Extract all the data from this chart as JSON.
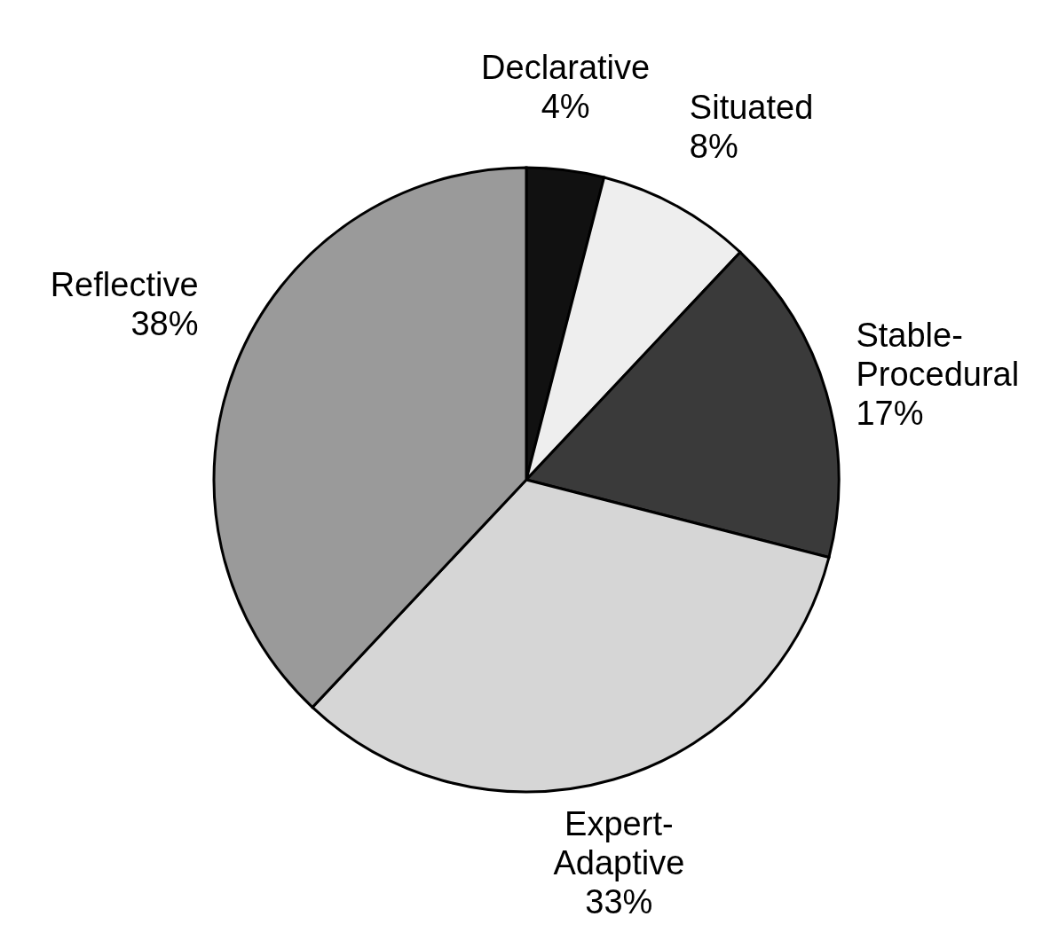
{
  "chart_data": {
    "type": "pie",
    "categories": [
      "Declarative",
      "Situated",
      "Stable-Procedural",
      "Expert-Adaptive",
      "Reflective"
    ],
    "values": [
      4,
      8,
      17,
      33,
      38
    ],
    "value_labels": [
      "4%",
      "8%",
      "17%",
      "33%",
      "38%"
    ],
    "colors": [
      "#111111",
      "#eeeeee",
      "#3a3a3a",
      "#d6d6d6",
      "#9a9a9a"
    ],
    "legend": false
  }
}
